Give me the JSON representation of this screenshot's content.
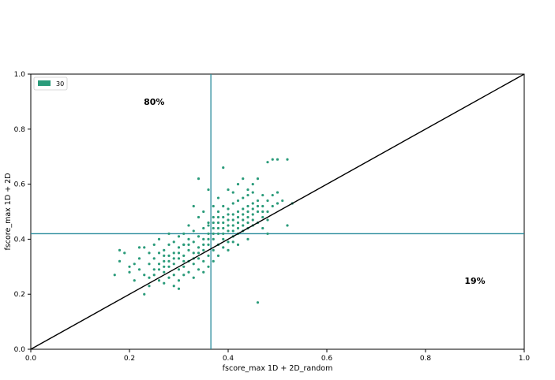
{
  "chart_data": {
    "type": "scatter",
    "xlabel": "fscore_max 1D + 2D_random",
    "ylabel": "fscore_max 1D + 2D",
    "xlim": [
      0.0,
      1.0
    ],
    "ylim": [
      0.0,
      1.0
    ],
    "xticks": [
      "0.0",
      "0.2",
      "0.4",
      "0.6",
      "0.8",
      "1.0"
    ],
    "yticks": [
      "0.0",
      "0.2",
      "0.4",
      "0.6",
      "0.8",
      "1.0"
    ],
    "grid": false,
    "legend_position": "top-left",
    "series": [
      {
        "name": "30",
        "color": "#2a9b7a",
        "points": [
          [
            0.17,
            0.27
          ],
          [
            0.18,
            0.32
          ],
          [
            0.18,
            0.36
          ],
          [
            0.19,
            0.35
          ],
          [
            0.2,
            0.3
          ],
          [
            0.2,
            0.28
          ],
          [
            0.21,
            0.25
          ],
          [
            0.22,
            0.29
          ],
          [
            0.22,
            0.33
          ],
          [
            0.23,
            0.27
          ],
          [
            0.23,
            0.2
          ],
          [
            0.23,
            0.37
          ],
          [
            0.24,
            0.31
          ],
          [
            0.24,
            0.26
          ],
          [
            0.24,
            0.23
          ],
          [
            0.25,
            0.33
          ],
          [
            0.25,
            0.29
          ],
          [
            0.25,
            0.38
          ],
          [
            0.26,
            0.25
          ],
          [
            0.26,
            0.31
          ],
          [
            0.26,
            0.35
          ],
          [
            0.26,
            0.4
          ],
          [
            0.27,
            0.28
          ],
          [
            0.27,
            0.32
          ],
          [
            0.27,
            0.36
          ],
          [
            0.27,
            0.24
          ],
          [
            0.28,
            0.3
          ],
          [
            0.28,
            0.34
          ],
          [
            0.28,
            0.26
          ],
          [
            0.28,
            0.38
          ],
          [
            0.28,
            0.42
          ],
          [
            0.29,
            0.31
          ],
          [
            0.29,
            0.27
          ],
          [
            0.29,
            0.35
          ],
          [
            0.29,
            0.23
          ],
          [
            0.3,
            0.33
          ],
          [
            0.3,
            0.37
          ],
          [
            0.3,
            0.29
          ],
          [
            0.3,
            0.41
          ],
          [
            0.3,
            0.25
          ],
          [
            0.31,
            0.34
          ],
          [
            0.31,
            0.3
          ],
          [
            0.31,
            0.38
          ],
          [
            0.31,
            0.42
          ],
          [
            0.31,
            0.27
          ],
          [
            0.32,
            0.36
          ],
          [
            0.32,
            0.32
          ],
          [
            0.32,
            0.28
          ],
          [
            0.32,
            0.4
          ],
          [
            0.32,
            0.45
          ],
          [
            0.33,
            0.35
          ],
          [
            0.33,
            0.31
          ],
          [
            0.33,
            0.39
          ],
          [
            0.33,
            0.43
          ],
          [
            0.33,
            0.52
          ],
          [
            0.34,
            0.37
          ],
          [
            0.34,
            0.33
          ],
          [
            0.34,
            0.41
          ],
          [
            0.34,
            0.29
          ],
          [
            0.34,
            0.48
          ],
          [
            0.35,
            0.36
          ],
          [
            0.35,
            0.4
          ],
          [
            0.35,
            0.32
          ],
          [
            0.35,
            0.44
          ],
          [
            0.35,
            0.5
          ],
          [
            0.36,
            0.38
          ],
          [
            0.36,
            0.42
          ],
          [
            0.36,
            0.34
          ],
          [
            0.36,
            0.46
          ],
          [
            0.36,
            0.3
          ],
          [
            0.37,
            0.4
          ],
          [
            0.37,
            0.44
          ],
          [
            0.37,
            0.36
          ],
          [
            0.37,
            0.48
          ],
          [
            0.37,
            0.52
          ],
          [
            0.38,
            0.42
          ],
          [
            0.38,
            0.46
          ],
          [
            0.38,
            0.38
          ],
          [
            0.38,
            0.5
          ],
          [
            0.38,
            0.34
          ],
          [
            0.39,
            0.44
          ],
          [
            0.39,
            0.48
          ],
          [
            0.39,
            0.4
          ],
          [
            0.39,
            0.52
          ],
          [
            0.39,
            0.66
          ],
          [
            0.4,
            0.43
          ],
          [
            0.4,
            0.47
          ],
          [
            0.4,
            0.39
          ],
          [
            0.4,
            0.51
          ],
          [
            0.4,
            0.36
          ],
          [
            0.41,
            0.45
          ],
          [
            0.41,
            0.49
          ],
          [
            0.41,
            0.41
          ],
          [
            0.41,
            0.53
          ],
          [
            0.41,
            0.57
          ],
          [
            0.42,
            0.46
          ],
          [
            0.42,
            0.5
          ],
          [
            0.42,
            0.42
          ],
          [
            0.42,
            0.54
          ],
          [
            0.42,
            0.38
          ],
          [
            0.43,
            0.47
          ],
          [
            0.43,
            0.51
          ],
          [
            0.43,
            0.43
          ],
          [
            0.43,
            0.55
          ],
          [
            0.43,
            0.62
          ],
          [
            0.44,
            0.48
          ],
          [
            0.44,
            0.52
          ],
          [
            0.44,
            0.44
          ],
          [
            0.44,
            0.56
          ],
          [
            0.44,
            0.4
          ],
          [
            0.45,
            0.49
          ],
          [
            0.45,
            0.53
          ],
          [
            0.45,
            0.45
          ],
          [
            0.45,
            0.57
          ],
          [
            0.45,
            0.6
          ],
          [
            0.46,
            0.5
          ],
          [
            0.46,
            0.54
          ],
          [
            0.46,
            0.46
          ],
          [
            0.46,
            0.17
          ],
          [
            0.47,
            0.48
          ],
          [
            0.47,
            0.52
          ],
          [
            0.47,
            0.56
          ],
          [
            0.47,
            0.44
          ],
          [
            0.48,
            0.5
          ],
          [
            0.48,
            0.54
          ],
          [
            0.48,
            0.68
          ],
          [
            0.48,
            0.42
          ],
          [
            0.49,
            0.52
          ],
          [
            0.49,
            0.56
          ],
          [
            0.49,
            0.69
          ],
          [
            0.5,
            0.53
          ],
          [
            0.5,
            0.57
          ],
          [
            0.5,
            0.69
          ],
          [
            0.51,
            0.54
          ],
          [
            0.52,
            0.69
          ],
          [
            0.52,
            0.45
          ],
          [
            0.53,
            0.53
          ],
          [
            0.21,
            0.31
          ],
          [
            0.22,
            0.37
          ],
          [
            0.24,
            0.35
          ],
          [
            0.25,
            0.27
          ],
          [
            0.26,
            0.29
          ],
          [
            0.27,
            0.34
          ],
          [
            0.28,
            0.32
          ],
          [
            0.29,
            0.39
          ],
          [
            0.3,
            0.35
          ],
          [
            0.31,
            0.32
          ],
          [
            0.32,
            0.38
          ],
          [
            0.33,
            0.33
          ],
          [
            0.34,
            0.35
          ],
          [
            0.35,
            0.38
          ],
          [
            0.36,
            0.4
          ],
          [
            0.37,
            0.42
          ],
          [
            0.38,
            0.44
          ],
          [
            0.39,
            0.46
          ],
          [
            0.4,
            0.45
          ],
          [
            0.41,
            0.47
          ],
          [
            0.42,
            0.48
          ],
          [
            0.43,
            0.49
          ],
          [
            0.44,
            0.5
          ],
          [
            0.45,
            0.51
          ],
          [
            0.46,
            0.52
          ],
          [
            0.36,
            0.45
          ],
          [
            0.37,
            0.46
          ],
          [
            0.38,
            0.48
          ],
          [
            0.39,
            0.42
          ],
          [
            0.4,
            0.49
          ],
          [
            0.41,
            0.43
          ],
          [
            0.42,
            0.44
          ],
          [
            0.43,
            0.45
          ],
          [
            0.44,
            0.46
          ],
          [
            0.45,
            0.47
          ],
          [
            0.47,
            0.5
          ],
          [
            0.48,
            0.47
          ],
          [
            0.34,
            0.62
          ],
          [
            0.36,
            0.58
          ],
          [
            0.38,
            0.55
          ],
          [
            0.4,
            0.58
          ],
          [
            0.42,
            0.6
          ],
          [
            0.44,
            0.58
          ],
          [
            0.46,
            0.62
          ],
          [
            0.31,
            0.38
          ],
          [
            0.29,
            0.33
          ],
          [
            0.27,
            0.3
          ],
          [
            0.3,
            0.22
          ],
          [
            0.33,
            0.26
          ],
          [
            0.35,
            0.28
          ],
          [
            0.37,
            0.32
          ],
          [
            0.39,
            0.37
          ],
          [
            0.41,
            0.39
          ]
        ]
      }
    ],
    "threshold_lines": {
      "x": 0.365,
      "y": 0.42,
      "color": "#2a8c9c"
    },
    "diagonal": {
      "from": [
        0,
        0
      ],
      "to": [
        1,
        1
      ],
      "color": "#000000"
    },
    "annotations": [
      {
        "text": "80%",
        "x": 0.25,
        "y": 0.9
      },
      {
        "text": "19%",
        "x": 0.9,
        "y": 0.25
      }
    ]
  }
}
